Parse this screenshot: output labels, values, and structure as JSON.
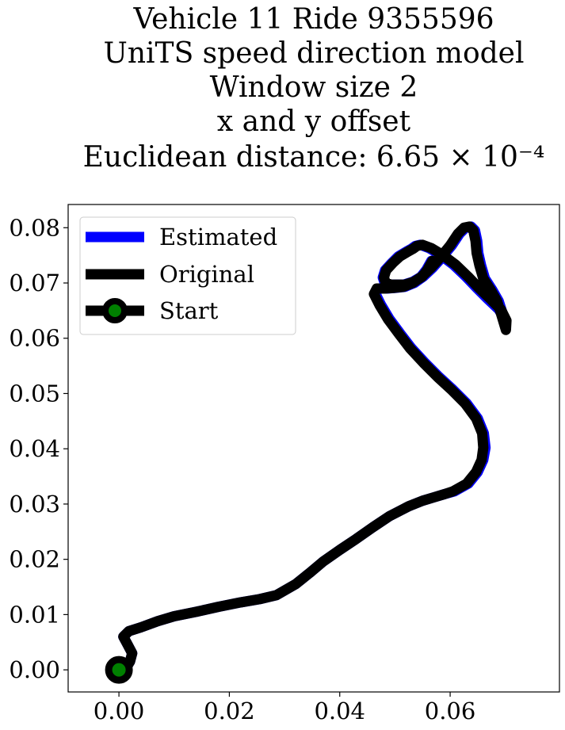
{
  "chart_data": {
    "type": "line",
    "title_lines": [
      "Vehicle 11 Ride 9355596",
      "UniTS speed direction model",
      "Window size 2",
      "x and y offset",
      "Euclidean distance: 6.65 × 10⁻⁴"
    ],
    "xlabel": "",
    "ylabel": "",
    "xlim": [
      -0.0092,
      0.0798
    ],
    "ylim": [
      -0.004,
      0.0842
    ],
    "xticks": [
      0.0,
      0.02,
      0.04,
      0.06
    ],
    "xtick_labels": [
      "0.00",
      "0.02",
      "0.04",
      "0.06"
    ],
    "yticks": [
      0.0,
      0.01,
      0.02,
      0.03,
      0.04,
      0.05,
      0.06,
      0.07,
      0.08
    ],
    "ytick_labels": [
      "0.00",
      "0.01",
      "0.02",
      "0.03",
      "0.04",
      "0.05",
      "0.06",
      "0.07",
      "0.08"
    ],
    "grid": false,
    "legend_position": "upper-left",
    "series": [
      {
        "name": "Estimated",
        "color": "#0000ff",
        "x": [
          0.0,
          0.0012,
          0.002,
          0.0024,
          0.0015,
          0.0008,
          0.0018,
          0.004,
          0.007,
          0.01,
          0.014,
          0.018,
          0.022,
          0.0255,
          0.0285,
          0.032,
          0.0345,
          0.037,
          0.04,
          0.043,
          0.046,
          0.049,
          0.0525,
          0.055,
          0.057,
          0.059,
          0.0608,
          0.0633,
          0.065,
          0.066,
          0.0664,
          0.0661,
          0.065,
          0.063,
          0.0605,
          0.058,
          0.0555,
          0.053,
          0.051,
          0.049,
          0.0475,
          0.0465,
          0.047,
          0.0485,
          0.05,
          0.0518,
          0.0535,
          0.0552,
          0.0568,
          0.0585,
          0.0603,
          0.0617,
          0.0628,
          0.0638,
          0.0645,
          0.0649,
          0.0651,
          0.0656,
          0.0663,
          0.0676,
          0.0688,
          0.0695,
          0.0701,
          0.0699,
          0.0688,
          0.0667,
          0.0648,
          0.0628,
          0.0606,
          0.0582,
          0.0562,
          0.0546,
          0.0537,
          0.053,
          0.0521,
          0.0506,
          0.0494,
          0.0482,
          0.0478,
          0.0481,
          0.049,
          0.0502,
          0.0516,
          0.0532,
          0.0547,
          0.0557,
          0.0566
        ],
        "y": [
          0.0,
          0.0002,
          0.0015,
          0.003,
          0.0047,
          0.006,
          0.007,
          0.0077,
          0.0088,
          0.0097,
          0.0105,
          0.0114,
          0.0122,
          0.0128,
          0.0135,
          0.0155,
          0.0175,
          0.0196,
          0.0217,
          0.0237,
          0.0258,
          0.0278,
          0.0296,
          0.0306,
          0.0312,
          0.0318,
          0.0323,
          0.0337,
          0.0358,
          0.038,
          0.0402,
          0.0428,
          0.0455,
          0.0482,
          0.0507,
          0.053,
          0.0555,
          0.0582,
          0.0608,
          0.0635,
          0.066,
          0.068,
          0.069,
          0.069,
          0.0691,
          0.0693,
          0.07,
          0.0712,
          0.0727,
          0.0746,
          0.0768,
          0.0789,
          0.08,
          0.0802,
          0.0795,
          0.0776,
          0.0754,
          0.0732,
          0.0708,
          0.0688,
          0.0667,
          0.0645,
          0.062,
          0.0635,
          0.0652,
          0.0672,
          0.0691,
          0.0712,
          0.0733,
          0.0751,
          0.0763,
          0.0769,
          0.0767,
          0.0762,
          0.0757,
          0.0748,
          0.0736,
          0.0723,
          0.071,
          0.0701,
          0.0697,
          0.0697,
          0.0697,
          0.0702,
          0.0711,
          0.0724,
          0.074
        ]
      },
      {
        "name": "Original",
        "color": "#000000",
        "x": [
          0.0,
          0.0012,
          0.002,
          0.0024,
          0.0015,
          0.0008,
          0.0018,
          0.004,
          0.007,
          0.01,
          0.014,
          0.018,
          0.022,
          0.0255,
          0.0285,
          0.032,
          0.0345,
          0.037,
          0.04,
          0.043,
          0.046,
          0.049,
          0.0525,
          0.055,
          0.057,
          0.059,
          0.0605,
          0.063,
          0.0647,
          0.0657,
          0.066,
          0.0658,
          0.0647,
          0.0627,
          0.0602,
          0.0577,
          0.0552,
          0.0527,
          0.0507,
          0.0487,
          0.0472,
          0.0462,
          0.0467,
          0.0482,
          0.0497,
          0.0515,
          0.0532,
          0.0549,
          0.0565,
          0.0582,
          0.06,
          0.0614,
          0.0625,
          0.0635,
          0.0642,
          0.0646,
          0.0648,
          0.0653,
          0.066,
          0.0673,
          0.0685,
          0.0692,
          0.0701,
          0.0702,
          0.0692,
          0.0672,
          0.0652,
          0.0632,
          0.061,
          0.0586,
          0.0566,
          0.055,
          0.054,
          0.0533,
          0.0524,
          0.0509,
          0.0496,
          0.0484,
          0.048,
          0.0483,
          0.0492,
          0.0504,
          0.0518,
          0.0534,
          0.0549,
          0.0559,
          0.0568
        ],
        "y": [
          0.0,
          0.0002,
          0.0015,
          0.003,
          0.0047,
          0.006,
          0.007,
          0.0077,
          0.0088,
          0.0097,
          0.0105,
          0.0114,
          0.0122,
          0.0128,
          0.0135,
          0.0155,
          0.0175,
          0.0196,
          0.0217,
          0.0237,
          0.0258,
          0.0278,
          0.0296,
          0.0306,
          0.0312,
          0.0318,
          0.0323,
          0.0337,
          0.0358,
          0.038,
          0.0402,
          0.0428,
          0.0455,
          0.0482,
          0.0507,
          0.053,
          0.0555,
          0.0582,
          0.0608,
          0.0635,
          0.066,
          0.068,
          0.069,
          0.069,
          0.0691,
          0.0693,
          0.07,
          0.0712,
          0.0727,
          0.0746,
          0.0768,
          0.0789,
          0.08,
          0.0802,
          0.0795,
          0.0776,
          0.0754,
          0.0732,
          0.0708,
          0.0688,
          0.0667,
          0.0645,
          0.0615,
          0.0632,
          0.0652,
          0.0672,
          0.0691,
          0.0712,
          0.0733,
          0.0751,
          0.0763,
          0.0769,
          0.0767,
          0.0762,
          0.0757,
          0.0748,
          0.0736,
          0.0723,
          0.071,
          0.0701,
          0.0697,
          0.0697,
          0.0697,
          0.0702,
          0.0711,
          0.0724,
          0.074
        ]
      }
    ],
    "start": {
      "name": "Start",
      "x": 0.0,
      "y": 0.0,
      "marker_face_color": "#008000",
      "marker_edge_color": "#000000"
    }
  }
}
